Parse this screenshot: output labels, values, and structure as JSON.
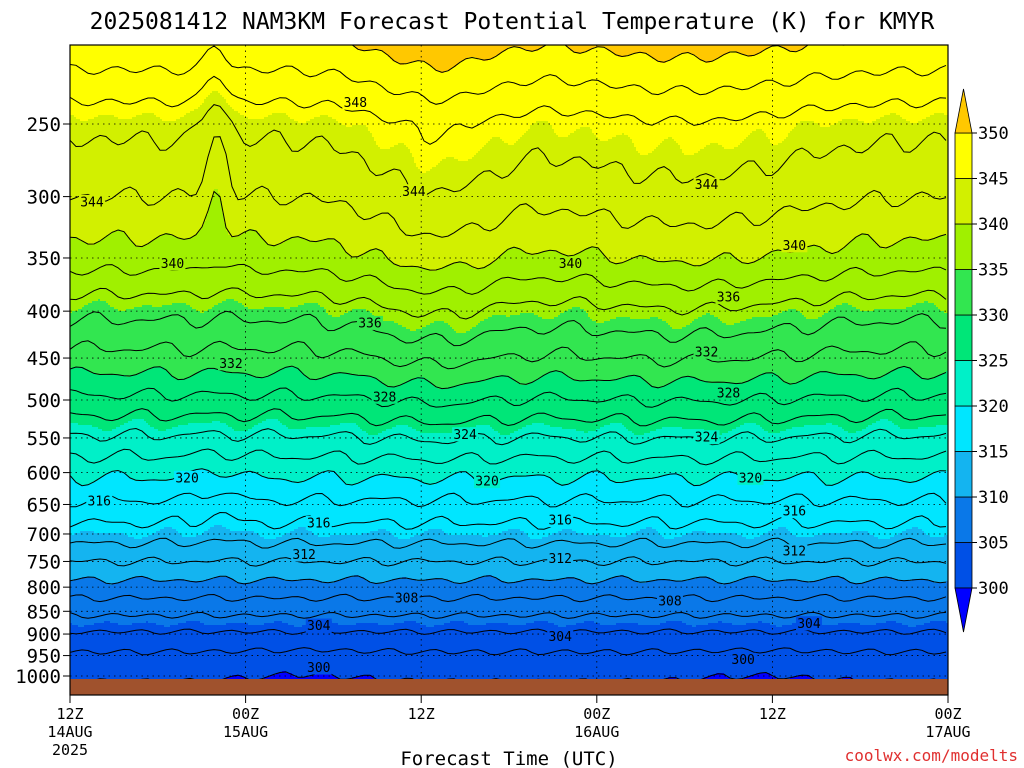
{
  "chart_data": {
    "type": "heatmap",
    "title": "2025081412 NAM3KM Forecast Potential Temperature (K) for KMYR",
    "xlabel": "Forecast Time (UTC)",
    "ylabel": "",
    "watermark": "coolwx.com/modelts",
    "x_range_hours": [
      0,
      60
    ],
    "x_ticks": [
      {
        "hour": 0,
        "line1": "12Z",
        "line2": "14AUG",
        "line3": "2025"
      },
      {
        "hour": 12,
        "line1": "00Z",
        "line2": "15AUG",
        "line3": ""
      },
      {
        "hour": 24,
        "line1": "12Z",
        "line2": "",
        "line3": ""
      },
      {
        "hour": 36,
        "line1": "00Z",
        "line2": "16AUG",
        "line3": ""
      },
      {
        "hour": 48,
        "line1": "12Z",
        "line2": "",
        "line3": ""
      },
      {
        "hour": 60,
        "line1": "00Z",
        "line2": "17AUG",
        "line3": ""
      }
    ],
    "y_axis": {
      "scale": "log-pressure",
      "unit": "hPa",
      "top": 200,
      "bottom": 1025
    },
    "y_ticks": [
      250,
      300,
      350,
      400,
      450,
      500,
      550,
      600,
      650,
      700,
      750,
      800,
      850,
      900,
      950,
      1000
    ],
    "grid": true,
    "surface_pressure": 1005,
    "colorbar": {
      "orientation": "vertical",
      "placement": "right",
      "labels": [
        350,
        345,
        340,
        335,
        330,
        325,
        320,
        315,
        310,
        305,
        300
      ],
      "levels": [
        300,
        305,
        310,
        315,
        320,
        325,
        330,
        335,
        340,
        345,
        350
      ],
      "colors": [
        "#0000ff",
        "#0050e6",
        "#0a78e8",
        "#14b4f0",
        "#00e6ff",
        "#00f0c8",
        "#00e678",
        "#32e650",
        "#a0f000",
        "#d2f000",
        "#ffff00",
        "#ffc800"
      ],
      "under_color": "#0000ff",
      "over_color": "#ffc800"
    },
    "contour_interval_K": 2,
    "contour_labels": [
      {
        "value": 348,
        "hour": 19.5,
        "p": 237
      },
      {
        "value": 344,
        "hour": 1.5,
        "p": 304
      },
      {
        "value": 344,
        "hour": 23.5,
        "p": 296
      },
      {
        "value": 344,
        "hour": 43.5,
        "p": 291
      },
      {
        "value": 340,
        "hour": 49.5,
        "p": 339
      },
      {
        "value": 340,
        "hour": 7,
        "p": 355
      },
      {
        "value": 340,
        "hour": 34.2,
        "p": 355
      },
      {
        "value": 336,
        "hour": 45,
        "p": 386
      },
      {
        "value": 336,
        "hour": 20.5,
        "p": 412
      },
      {
        "value": 332,
        "hour": 11,
        "p": 456
      },
      {
        "value": 332,
        "hour": 43.5,
        "p": 443
      },
      {
        "value": 328,
        "hour": 21.5,
        "p": 496
      },
      {
        "value": 328,
        "hour": 45,
        "p": 491
      },
      {
        "value": 324,
        "hour": 27,
        "p": 545
      },
      {
        "value": 324,
        "hour": 43.5,
        "p": 549
      },
      {
        "value": 320,
        "hour": 8,
        "p": 608
      },
      {
        "value": 320,
        "hour": 28.5,
        "p": 613
      },
      {
        "value": 320,
        "hour": 46.5,
        "p": 608
      },
      {
        "value": 316,
        "hour": 2,
        "p": 644
      },
      {
        "value": 316,
        "hour": 17,
        "p": 681
      },
      {
        "value": 316,
        "hour": 33.5,
        "p": 676
      },
      {
        "value": 316,
        "hour": 49.5,
        "p": 661
      },
      {
        "value": 312,
        "hour": 16,
        "p": 737
      },
      {
        "value": 312,
        "hour": 33.5,
        "p": 744
      },
      {
        "value": 312,
        "hour": 49.5,
        "p": 731
      },
      {
        "value": 308,
        "hour": 23,
        "p": 822
      },
      {
        "value": 308,
        "hour": 41,
        "p": 828
      },
      {
        "value": 304,
        "hour": 17,
        "p": 881
      },
      {
        "value": 304,
        "hour": 33.5,
        "p": 905
      },
      {
        "value": 304,
        "hour": 50.5,
        "p": 876
      },
      {
        "value": 300,
        "hour": 17,
        "p": 979
      },
      {
        "value": 300,
        "hour": 46,
        "p": 960
      }
    ]
  }
}
